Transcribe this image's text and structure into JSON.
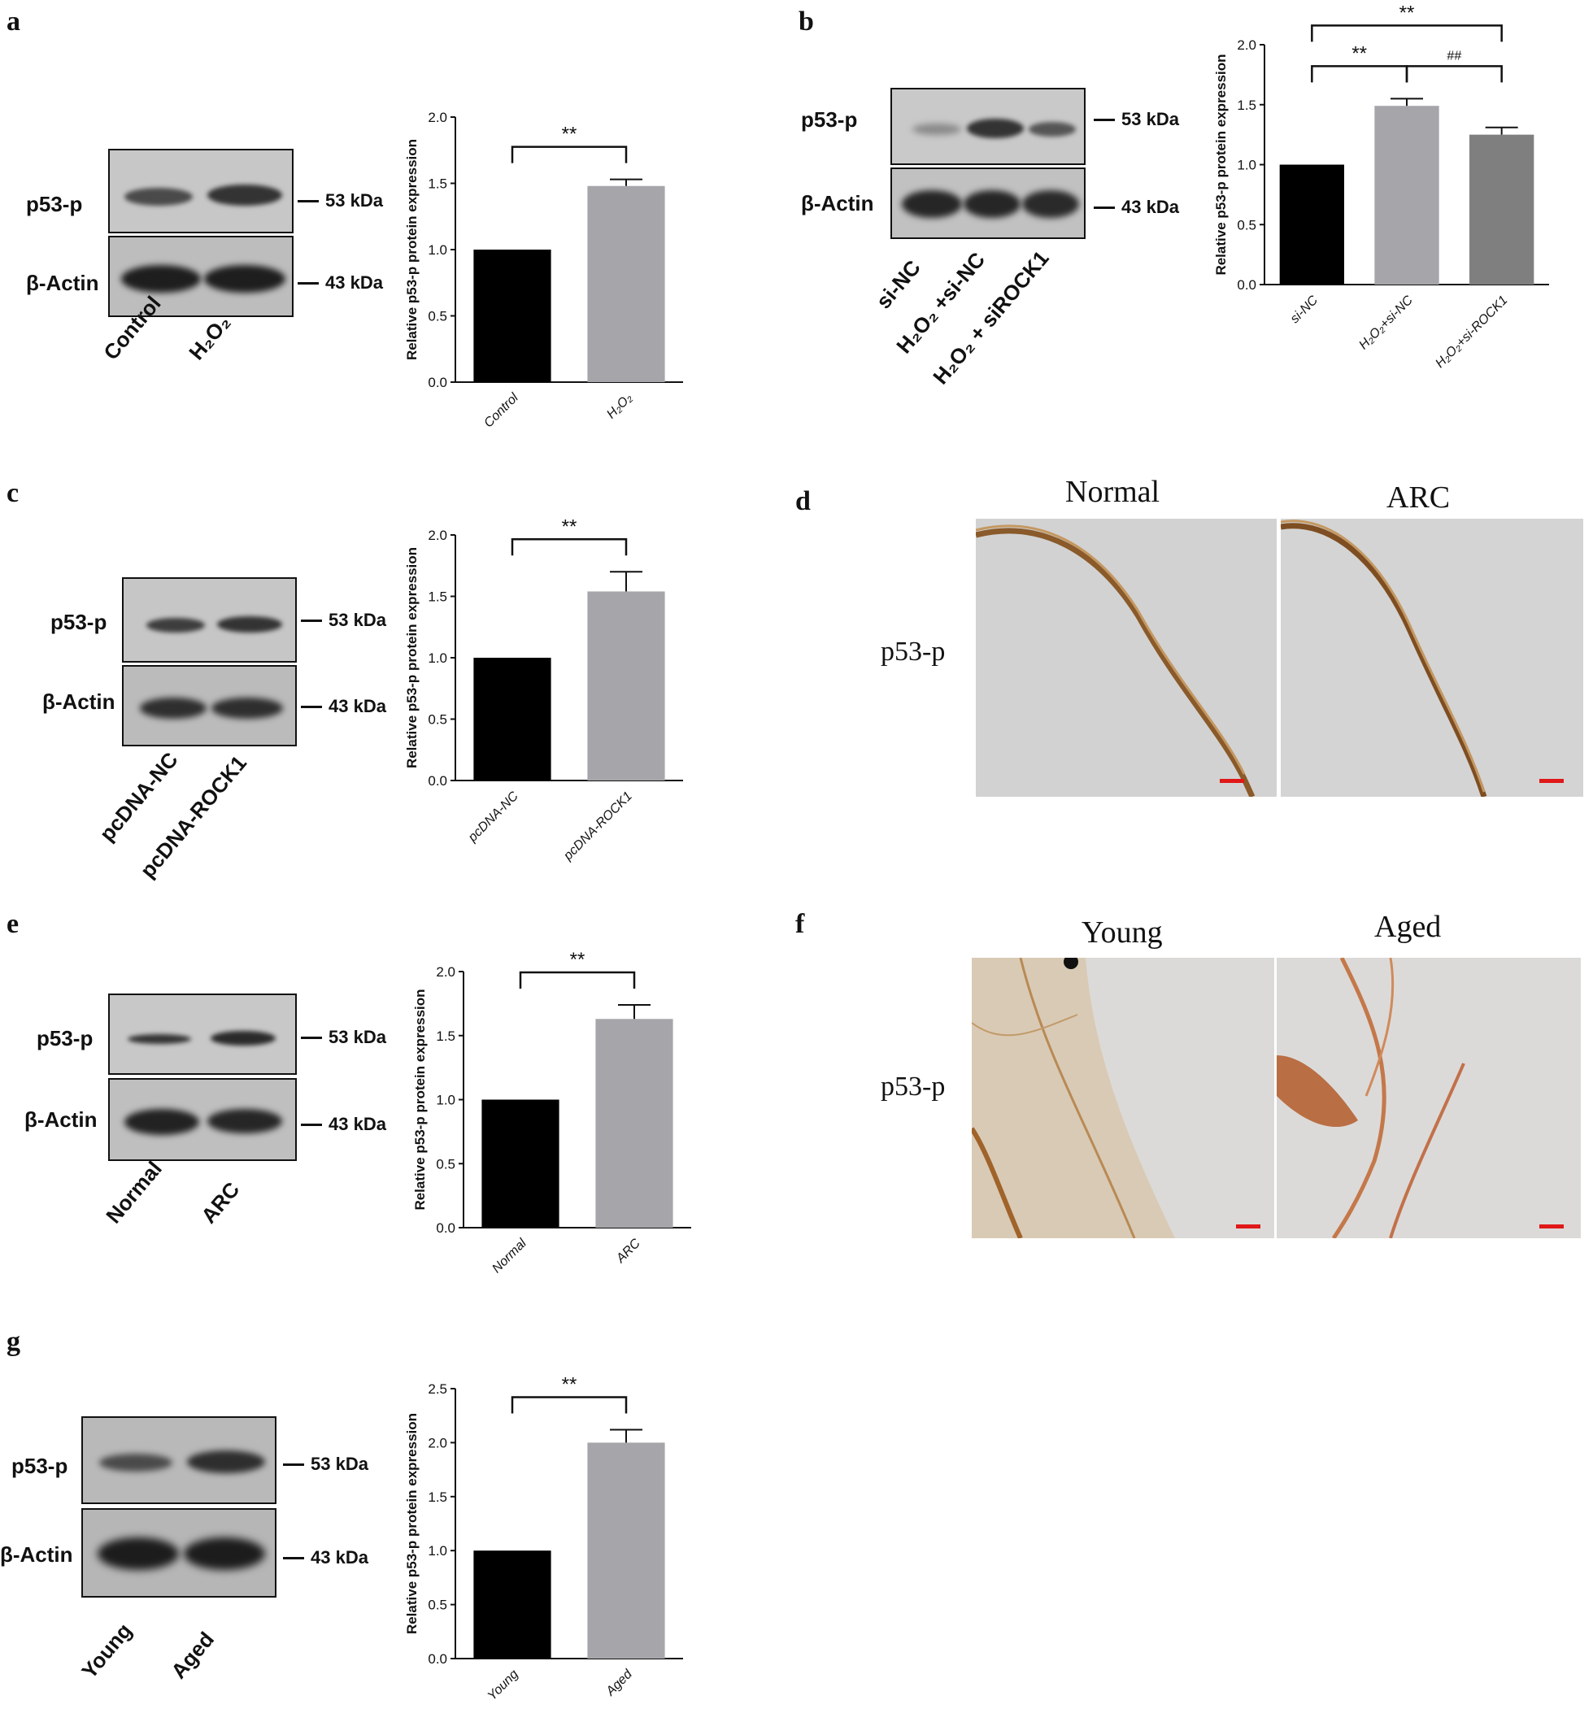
{
  "panels": {
    "a": {
      "letter": "a",
      "blot": {
        "rows": [
          "p53-p",
          "β-Actin"
        ],
        "markers": [
          "53 kDa",
          "43 kDa"
        ],
        "lanes": [
          "Control",
          "H₂O₂"
        ]
      },
      "chart_data": {
        "type": "bar",
        "categories": [
          "Control",
          "H₂O₂"
        ],
        "values": [
          1.0,
          1.48
        ],
        "errors": [
          0,
          0.05
        ],
        "colors": [
          "#000000",
          "#a6a6aa"
        ],
        "ylabel": "Relative p53-p protein expression",
        "ylim": [
          0,
          2.0
        ],
        "yticks": [
          "0.0",
          "0.5",
          "1.0",
          "1.5",
          "2.0"
        ],
        "significance": [
          {
            "from": 0,
            "to": 1,
            "label": "**"
          }
        ]
      }
    },
    "b": {
      "letter": "b",
      "blot": {
        "rows": [
          "p53-p",
          "β-Actin"
        ],
        "markers": [
          "53 kDa",
          "43 kDa"
        ],
        "lanes": [
          "si-NC",
          "H₂O₂ +si-NC",
          "H₂O₂ + siROCK1"
        ]
      },
      "chart_data": {
        "type": "bar",
        "categories": [
          "si-NC",
          "H₂O₂+si-NC",
          "H₂O₂+si-ROCK1"
        ],
        "values": [
          1.0,
          1.49,
          1.25
        ],
        "errors": [
          0,
          0.06,
          0.06
        ],
        "colors": [
          "#000000",
          "#a6a6aa",
          "#7f7f7f"
        ],
        "ylabel": "Relative p53-p protein expression",
        "ylim": [
          0,
          2.0
        ],
        "yticks": [
          "0.0",
          "0.5",
          "1.0",
          "1.5",
          "2.0"
        ],
        "significance": [
          {
            "from": 0,
            "to": 2,
            "label": "**"
          },
          {
            "from": 0,
            "to": 1,
            "label": "**"
          },
          {
            "from": 1,
            "to": 2,
            "label": "##"
          }
        ]
      }
    },
    "c": {
      "letter": "c",
      "blot": {
        "rows": [
          "p53-p",
          "β-Actin"
        ],
        "markers": [
          "53 kDa",
          "43 kDa"
        ],
        "lanes": [
          "pcDNA-NC",
          "pcDNA-ROCK1"
        ]
      },
      "chart_data": {
        "type": "bar",
        "categories": [
          "pcDNA-NC",
          "pcDNA-ROCK1"
        ],
        "values": [
          1.0,
          1.54
        ],
        "errors": [
          0,
          0.16
        ],
        "colors": [
          "#000000",
          "#a6a6aa"
        ],
        "ylabel": "Relative p53-p protein expression",
        "ylim": [
          0,
          2.0
        ],
        "yticks": [
          "0.0",
          "0.5",
          "1.0",
          "1.5",
          "2.0"
        ],
        "significance": [
          {
            "from": 0,
            "to": 1,
            "label": "**"
          }
        ]
      }
    },
    "d": {
      "letter": "d",
      "titles": [
        "Normal",
        "ARC"
      ],
      "row_label": "p53-p"
    },
    "e": {
      "letter": "e",
      "blot": {
        "rows": [
          "p53-p",
          "β-Actin"
        ],
        "markers": [
          "53 kDa",
          "43 kDa"
        ],
        "lanes": [
          "Normal",
          "ARC"
        ]
      },
      "chart_data": {
        "type": "bar",
        "categories": [
          "Normal",
          "ARC"
        ],
        "values": [
          1.0,
          1.63
        ],
        "errors": [
          0,
          0.11
        ],
        "colors": [
          "#000000",
          "#a6a6aa"
        ],
        "ylabel": "Relative p53-p protein expression",
        "ylim": [
          0,
          2.0
        ],
        "yticks": [
          "0.0",
          "0.5",
          "1.0",
          "1.5",
          "2.0"
        ],
        "significance": [
          {
            "from": 0,
            "to": 1,
            "label": "**"
          }
        ]
      }
    },
    "f": {
      "letter": "f",
      "titles": [
        "Young",
        "Aged"
      ],
      "row_label": "p53-p"
    },
    "g": {
      "letter": "g",
      "blot": {
        "rows": [
          "p53-p",
          "β-Actin"
        ],
        "markers": [
          "53 kDa",
          "43 kDa"
        ],
        "lanes": [
          "Young",
          "Aged"
        ]
      },
      "chart_data": {
        "type": "bar",
        "categories": [
          "Young",
          "Aged"
        ],
        "values": [
          1.0,
          2.0
        ],
        "errors": [
          0,
          0.12
        ],
        "colors": [
          "#000000",
          "#a6a6aa"
        ],
        "ylabel": "Relative p53-p protein expression",
        "ylim": [
          0,
          2.5
        ],
        "yticks": [
          "0.0",
          "0.5",
          "1.0",
          "1.5",
          "2.0",
          "2.5"
        ],
        "significance": [
          {
            "from": 0,
            "to": 1,
            "label": "**"
          }
        ]
      }
    }
  }
}
